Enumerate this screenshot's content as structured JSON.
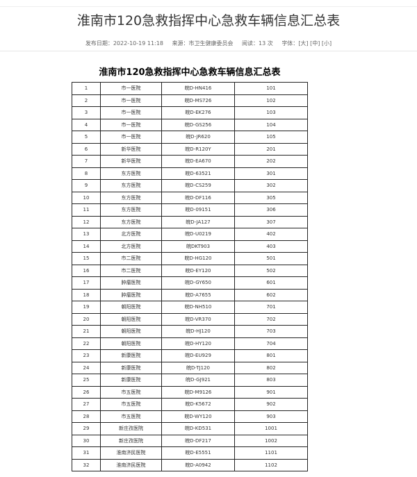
{
  "article": {
    "title": "淮南市120急救指挥中心急救车辆信息汇总表",
    "publish_date": "发布日期：2022-10-19 11:18",
    "source": "来源：市卫生健康委员会",
    "views": "阅读：13 次",
    "font_label": "字体：",
    "font_large": "[大]",
    "font_medium": "[中]",
    "font_small": "[小]"
  },
  "table": {
    "caption": "淮南市120急救指挥中心急救车辆信息汇总表",
    "rows": [
      [
        "1",
        "市一医院",
        "皖D-HN416",
        "101"
      ],
      [
        "2",
        "市一医院",
        "皖D-MS726",
        "102"
      ],
      [
        "3",
        "市一医院",
        "皖D-EK276",
        "103"
      ],
      [
        "4",
        "市一医院",
        "皖D-GS256",
        "104"
      ],
      [
        "5",
        "市一医院",
        "皖D-JR620",
        "105"
      ],
      [
        "6",
        "新华医院",
        "皖D-R120Y",
        "201"
      ],
      [
        "7",
        "新华医院",
        "皖D-EA670",
        "202"
      ],
      [
        "8",
        "东方医院",
        "皖D-63521",
        "301"
      ],
      [
        "9",
        "东方医院",
        "皖D-CS259",
        "302"
      ],
      [
        "10",
        "东方医院",
        "皖D-DF116",
        "305"
      ],
      [
        "11",
        "东方医院",
        "皖D-09151",
        "306"
      ],
      [
        "12",
        "东方医院",
        "皖D-JA127",
        "307"
      ],
      [
        "13",
        "北方医院",
        "皖D-U0219",
        "402"
      ],
      [
        "14",
        "北方医院",
        "皖DKT903",
        "403"
      ],
      [
        "15",
        "市二医院",
        "皖D-HG120",
        "501"
      ],
      [
        "16",
        "市二医院",
        "皖D-EY120",
        "502"
      ],
      [
        "17",
        "肿瘤医院",
        "皖D-GY650",
        "601"
      ],
      [
        "18",
        "肿瘤医院",
        "皖D-A7655",
        "602"
      ],
      [
        "19",
        "朝阳医院",
        "皖D-NH510",
        "701"
      ],
      [
        "20",
        "朝阳医院",
        "皖D-VR370",
        "702"
      ],
      [
        "21",
        "朝阳医院",
        "皖D-HJ120",
        "703"
      ],
      [
        "22",
        "朝阳医院",
        "皖D-HY120",
        "704"
      ],
      [
        "23",
        "新康医院",
        "皖D-EU929",
        "801"
      ],
      [
        "24",
        "新康医院",
        "皖D-TJ120",
        "802"
      ],
      [
        "25",
        "新康医院",
        "皖D-GJ921",
        "803"
      ],
      [
        "26",
        "市五医院",
        "皖D-M9126",
        "901"
      ],
      [
        "27",
        "市五医院",
        "皖D-K5672",
        "902"
      ],
      [
        "28",
        "市五医院",
        "皖D-WY120",
        "903"
      ],
      [
        "29",
        "新庄孜医院",
        "皖D-KD531",
        "1001"
      ],
      [
        "30",
        "新庄孜医院",
        "皖D-DF217",
        "1002"
      ],
      [
        "31",
        "淮南济民医院",
        "皖D-E5551",
        "1101"
      ],
      [
        "32",
        "淮南济民医院",
        "皖D-A0942",
        "1102"
      ]
    ]
  }
}
